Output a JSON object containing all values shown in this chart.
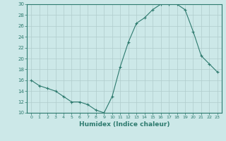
{
  "x": [
    0,
    1,
    2,
    3,
    4,
    5,
    6,
    7,
    8,
    9,
    10,
    11,
    12,
    13,
    14,
    15,
    16,
    17,
    18,
    19,
    20,
    21,
    22,
    23
  ],
  "y": [
    16,
    15,
    14.5,
    14,
    13,
    12,
    12,
    11.5,
    10.5,
    10,
    13,
    18.5,
    23,
    26.5,
    27.5,
    29,
    30,
    30,
    30,
    29,
    25,
    20.5,
    19,
    17.5
  ],
  "xlabel": "Humidex (Indice chaleur)",
  "ylim": [
    10,
    30
  ],
  "xlim": [
    -0.5,
    23.5
  ],
  "yticks": [
    10,
    12,
    14,
    16,
    18,
    20,
    22,
    24,
    26,
    28,
    30
  ],
  "xticks": [
    0,
    1,
    2,
    3,
    4,
    5,
    6,
    7,
    8,
    9,
    10,
    11,
    12,
    13,
    14,
    15,
    16,
    17,
    18,
    19,
    20,
    21,
    22,
    23
  ],
  "line_color": "#2d7a6e",
  "bg_color": "#cce8e8",
  "grid_color": "#b0cccc",
  "marker": "+"
}
